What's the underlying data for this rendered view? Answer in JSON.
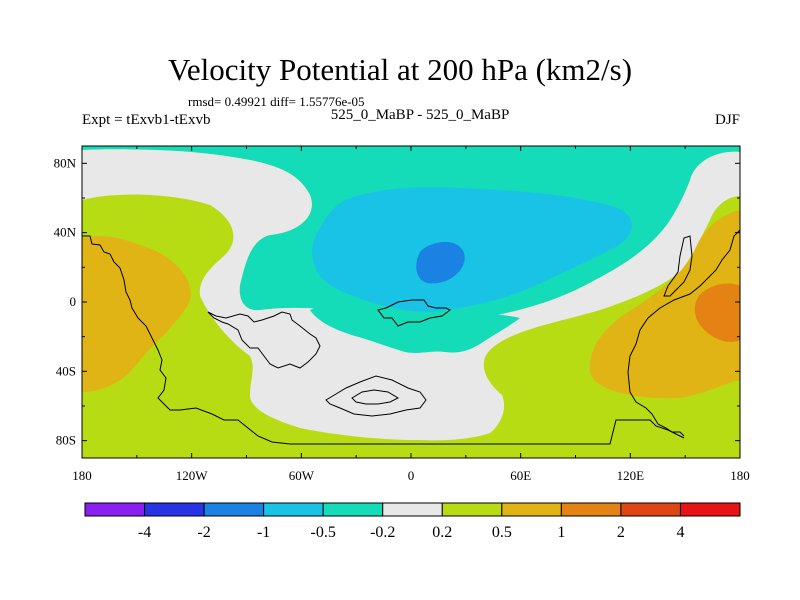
{
  "header": {
    "title": "Velocity Potential at 200 hPa (km2/s)",
    "stats": "rmsd= 0.49921  diff= 1.55776e-05",
    "left_label": "Expt = tExvb1-tExvb",
    "center_label": "525_0_MaBP - 525_0_MaBP",
    "right_label": "DJF"
  },
  "chart_data": {
    "type": "heatmap",
    "title": "Velocity Potential at 200 hPa (km2/s)",
    "xlabel": "",
    "ylabel": "",
    "xlim": [
      -180,
      180
    ],
    "ylim": [
      -90,
      90
    ],
    "x_ticks": [
      {
        "value": -180,
        "label": "180"
      },
      {
        "value": -120,
        "label": "120W"
      },
      {
        "value": -60,
        "label": "60W"
      },
      {
        "value": 0,
        "label": "0"
      },
      {
        "value": 60,
        "label": "60E"
      },
      {
        "value": 120,
        "label": "120E"
      },
      {
        "value": 180,
        "label": "180"
      }
    ],
    "y_ticks": [
      {
        "value": 80,
        "label": "80N"
      },
      {
        "value": 40,
        "label": "40N"
      },
      {
        "value": 0,
        "label": "0"
      },
      {
        "value": -40,
        "label": "40S"
      },
      {
        "value": -80,
        "label": "80S"
      }
    ],
    "colorbar": {
      "colors": [
        "#8b1ef0",
        "#2833e6",
        "#1a82e2",
        "#19c3e5",
        "#14dcb8",
        "#e8e8e8",
        "#b8dc14",
        "#e0b414",
        "#e58214",
        "#e04614",
        "#e61414"
      ],
      "levels": [
        "-4",
        "-2",
        "-1",
        "-0.5",
        "-0.2",
        "0.2",
        "0.5",
        "1",
        "2",
        "4"
      ]
    },
    "regions": [
      {
        "name": "north-teal-band",
        "value_range": [
          -0.5,
          -0.2
        ]
      },
      {
        "name": "atlantic-cyan-region",
        "value_range": [
          -1,
          -0.5
        ]
      },
      {
        "name": "africa-blue-core",
        "value_range": [
          -2,
          -1
        ]
      },
      {
        "name": "pacific-orange-west",
        "value_range": [
          0.5,
          1
        ]
      },
      {
        "name": "australia-orange",
        "value_range": [
          0.5,
          1
        ]
      },
      {
        "name": "australia-dark-orange-core",
        "value_range": [
          1,
          2
        ]
      }
    ]
  }
}
